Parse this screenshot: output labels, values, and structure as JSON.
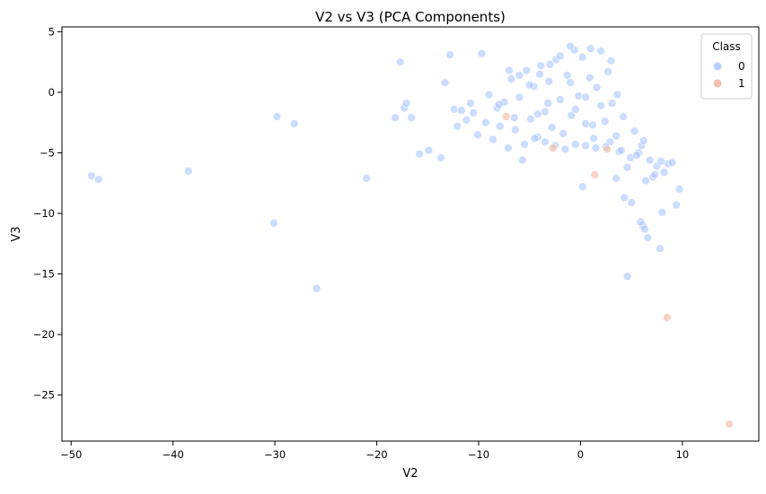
{
  "chart_data": {
    "type": "scatter",
    "title": "V2 vs V3 (PCA Components)",
    "xlabel": "V2",
    "ylabel": "V3",
    "xlim": [
      -50.9,
      17.5
    ],
    "ylim": [
      -28.8,
      5.4
    ],
    "xticks": [
      -50,
      -40,
      -30,
      -20,
      -10,
      0,
      10
    ],
    "yticks": [
      5,
      0,
      -5,
      -10,
      -15,
      -20,
      -25
    ],
    "grid": false,
    "legend": {
      "title": "Class",
      "placement": "top-right"
    },
    "series": [
      {
        "name": "0",
        "color": "#aac7fd",
        "x": [
          -48.0,
          -47.3,
          -38.5,
          -29.8,
          -28.1,
          -30.1,
          -25.9,
          -21.0,
          -18.2,
          -17.7,
          -17.3,
          -17.1,
          -16.6,
          -15.8,
          -14.9,
          -13.7,
          -13.3,
          -12.8,
          -12.4,
          -12.1,
          -11.7,
          -11.2,
          -10.8,
          -10.5,
          -10.1,
          -9.7,
          -9.3,
          -9.0,
          -8.6,
          -8.2,
          -7.9,
          -7.5,
          -7.1,
          -6.8,
          -6.4,
          -6.0,
          -5.7,
          -5.3,
          -4.9,
          -4.6,
          -4.2,
          -3.9,
          -3.5,
          -3.1,
          -2.8,
          -2.4,
          -2.0,
          -1.7,
          -1.3,
          -0.9,
          -0.6,
          -0.2,
          0.2,
          0.5,
          0.9,
          1.3,
          1.6,
          2.0,
          2.4,
          2.7,
          3.1,
          3.5,
          3.8,
          4.2,
          4.6,
          4.9,
          5.3,
          5.7,
          6.0,
          6.4,
          6.8,
          7.1,
          7.5,
          7.9,
          8.2,
          8.6,
          9.0,
          9.4,
          9.7,
          6.1,
          7.8,
          4.6,
          3.5,
          5.0,
          6.6,
          4.3,
          2.9,
          0.2,
          -1.0,
          -2.0,
          -3.0,
          -4.0,
          -5.0,
          -6.0,
          -7.0,
          -8.0,
          -1.5,
          -0.5,
          0.5,
          1.5,
          2.5,
          -2.5,
          -3.5,
          -4.5,
          -5.5,
          -6.5,
          1.0,
          2.0,
          3.0,
          -1.0,
          -0.5,
          0.5,
          1.2,
          -3.2,
          -4.2,
          3.6,
          4.0,
          5.5,
          6.2,
          7.3,
          8.0,
          5.9,
          6.3
        ],
        "y": [
          -6.9,
          -7.2,
          -6.5,
          -2.0,
          -2.6,
          -10.8,
          -16.2,
          -7.1,
          -2.1,
          2.5,
          -1.3,
          -0.9,
          -2.1,
          -5.1,
          -4.8,
          -5.4,
          0.8,
          3.1,
          -1.4,
          -2.8,
          -1.5,
          -2.3,
          -0.9,
          -1.7,
          -3.5,
          3.2,
          -2.5,
          -0.2,
          -3.9,
          -1.3,
          -2.8,
          -0.8,
          -4.6,
          1.1,
          -3.1,
          -0.4,
          -5.6,
          1.8,
          -2.2,
          0.5,
          -3.7,
          2.2,
          -1.6,
          0.9,
          -2.9,
          2.7,
          -0.6,
          -3.4,
          1.4,
          -1.9,
          3.5,
          -0.3,
          2.9,
          -2.6,
          1.2,
          -3.8,
          0.4,
          -1.1,
          -2.4,
          1.7,
          -0.9,
          -3.6,
          -4.9,
          -2.0,
          -6.2,
          -5.4,
          -3.2,
          -5.0,
          -4.4,
          -7.3,
          -5.6,
          -7.0,
          -6.1,
          -5.7,
          -6.6,
          -5.9,
          -5.8,
          -9.3,
          -8.0,
          -11.0,
          -12.9,
          -15.2,
          -7.1,
          -9.1,
          -12.0,
          -8.7,
          -4.1,
          -7.8,
          3.8,
          3.0,
          2.3,
          1.5,
          0.6,
          1.4,
          1.8,
          -1.0,
          -4.7,
          -4.3,
          -4.4,
          -4.6,
          -4.5,
          -4.4,
          -4.1,
          -3.8,
          -4.3,
          -2.1,
          3.6,
          3.4,
          2.6,
          0.8,
          -1.4,
          -0.4,
          -2.7,
          -0.9,
          -1.8,
          -0.2,
          -4.8,
          -5.2,
          -4.0,
          -6.8,
          -9.9,
          -10.7,
          -11.3
        ]
      },
      {
        "name": "1",
        "color": "#f0b59f",
        "x": [
          14.6,
          8.5,
          1.4,
          -2.7,
          2.6,
          -7.3
        ],
        "y": [
          -27.4,
          -18.6,
          -6.8,
          -4.6,
          -4.7,
          -2.0
        ]
      }
    ]
  }
}
